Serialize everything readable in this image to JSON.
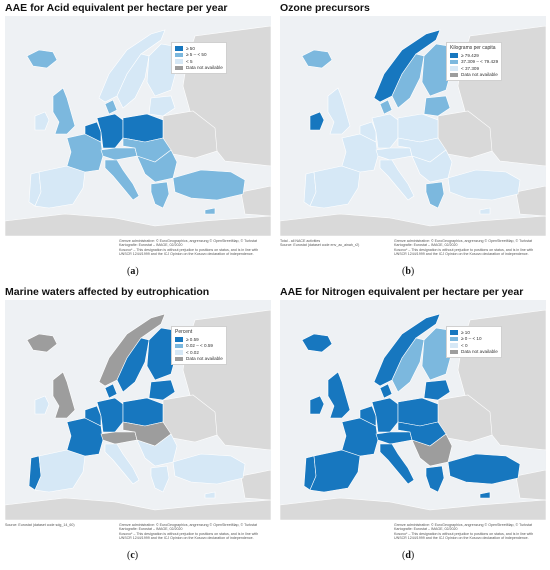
{
  "panels": [
    {
      "id": "a",
      "title": "AAE for Acid equivalent per hectare per year",
      "label": "a",
      "legend": {
        "title": "",
        "items": [
          {
            "label": "≥ 50",
            "color": "#1777bf"
          },
          {
            "label": "≥ 5 – < 50",
            "color": "#7cb8de"
          },
          {
            "label": "< 5",
            "color": "#d6e8f6"
          },
          {
            "label": "Data not available",
            "color": "#9d9d9d"
          }
        ]
      },
      "source": "",
      "credits": [
        "Grenze administrative: © EuroGeographics, angrenzung © OpenStreetMap, © Turkstat",
        "Kartografie: Eurostat – IMAGE, 02/2020",
        "Kosovo* – This designation is without prejudice to positions on status, and is in line with",
        "UNSCR 1244/1999 and the ICJ Opinion on the Kosovo declaration of independence."
      ],
      "fills": {
        "iceland": "#7cb8de",
        "ireland": "#d6e8f6",
        "uk": "#7cb8de",
        "portugal": "#d6e8f6",
        "spain": "#d6e8f6",
        "france": "#7cb8de",
        "benelux": "#1777bf",
        "germany": "#1777bf",
        "poland": "#1777bf",
        "italy": "#7cb8de",
        "alps": "#7cb8de",
        "central": "#7cb8de",
        "balkans": "#7cb8de",
        "greece": "#7cb8de",
        "turkey": "#7cb8de",
        "norway": "#d6e8f6",
        "sweden": "#d6e8f6",
        "finland": "#d6e8f6",
        "baltics": "#d6e8f6",
        "denmark": "#7cb8de",
        "cyprus": "#7cb8de"
      }
    },
    {
      "id": "b",
      "title": "Ozone precursors",
      "label": "b",
      "legend": {
        "title": "Kilograms per capita",
        "items": [
          {
            "label": "≥ 79.429",
            "color": "#1777bf"
          },
          {
            "label": "37.309 – < 79.429",
            "color": "#7cb8de"
          },
          {
            "label": "< 37.309",
            "color": "#d6e8f6"
          },
          {
            "label": "Data not available",
            "color": "#9d9d9d"
          }
        ]
      },
      "source": "Total - all NACE activities\nSource: Eurostat (dataset code env_ac_ainah_r2)",
      "credits": [
        "Grenze administrative: © EuroGeographics, angrenzung © OpenStreetMap, © Turkstat",
        "Kartografie: Eurostat – IMAGE, 02/2020",
        "Kosovo* – This designation is without prejudice to positions on status, and is in line with",
        "UNSCR 1244/1999 and the ICJ Opinion on the Kosovo declaration of independence."
      ],
      "fills": {
        "iceland": "#7cb8de",
        "ireland": "#1777bf",
        "uk": "#d6e8f6",
        "portugal": "#d6e8f6",
        "spain": "#d6e8f6",
        "france": "#d6e8f6",
        "benelux": "#d6e8f6",
        "germany": "#d6e8f6",
        "poland": "#d6e8f6",
        "italy": "#d6e8f6",
        "alps": "#d6e8f6",
        "central": "#d6e8f6",
        "balkans": "#d6e8f6",
        "greece": "#7cb8de",
        "turkey": "#d6e8f6",
        "norway": "#1777bf",
        "sweden": "#7cb8de",
        "finland": "#7cb8de",
        "baltics": "#7cb8de",
        "denmark": "#7cb8de",
        "cyprus": "#d6e8f6"
      }
    },
    {
      "id": "c",
      "title": "Marine waters affected by eutrophication",
      "label": "c",
      "legend": {
        "title": "Percent",
        "items": [
          {
            "label": "≥ 0.59",
            "color": "#1777bf"
          },
          {
            "label": "0.02 – < 0.59",
            "color": "#7cb8de"
          },
          {
            "label": "< 0.02",
            "color": "#d6e8f6"
          },
          {
            "label": "Data not available",
            "color": "#9d9d9d"
          }
        ]
      },
      "source": "Source: Eurostat (dataset code sdg_14_60)",
      "credits": [
        "Grenze administrative: © EuroGeographics, angrenzung © OpenStreetMap, © Turkstat",
        "Kartografie: Eurostat – IMAGE, 02/2020",
        "Kosovo* – This designation is without prejudice to positions on status, and is in line with",
        "UNSCR 1244/1999 and the ICJ Opinion on the Kosovo declaration of independence."
      ],
      "fills": {
        "iceland": "#9d9d9d",
        "ireland": "#d6e8f6",
        "uk": "#9d9d9d",
        "portugal": "#1777bf",
        "spain": "#d6e8f6",
        "france": "#1777bf",
        "benelux": "#1777bf",
        "germany": "#1777bf",
        "poland": "#1777bf",
        "italy": "#d6e8f6",
        "alps": "#9d9d9d",
        "central": "#9d9d9d",
        "balkans": "#d6e8f6",
        "greece": "#d6e8f6",
        "turkey": "#d6e8f6",
        "norway": "#9d9d9d",
        "sweden": "#1777bf",
        "finland": "#1777bf",
        "baltics": "#1777bf",
        "denmark": "#1777bf",
        "cyprus": "#d6e8f6"
      }
    },
    {
      "id": "d",
      "title": "AAE for Nitrogen equivalent per hectare per year",
      "label": "d",
      "legend": {
        "title": "",
        "items": [
          {
            "label": "≥ 10",
            "color": "#1777bf"
          },
          {
            "label": "≥ 0 – < 10",
            "color": "#7cb8de"
          },
          {
            "label": "< 0",
            "color": "#d6e8f6"
          },
          {
            "label": "Data not available",
            "color": "#9d9d9d"
          }
        ]
      },
      "source": "",
      "credits": [
        "Grenze administrative: © EuroGeographics, angrenzung © OpenStreetMap, © Turkstat",
        "Kartografie: Eurostat – IMAGE, 02/2020",
        "Kosovo* – This designation is without prejudice to positions on status, and is in line with",
        "UNSCR 1244/1999 and the ICJ Opinion on the Kosovo declaration of independence."
      ],
      "fills": {
        "iceland": "#1777bf",
        "ireland": "#1777bf",
        "uk": "#1777bf",
        "portugal": "#1777bf",
        "spain": "#1777bf",
        "france": "#1777bf",
        "benelux": "#1777bf",
        "germany": "#1777bf",
        "poland": "#1777bf",
        "italy": "#1777bf",
        "alps": "#1777bf",
        "central": "#1777bf",
        "balkans": "#9d9d9d",
        "greece": "#1777bf",
        "turkey": "#1777bf",
        "norway": "#1777bf",
        "sweden": "#7cb8de",
        "finland": "#7cb8de",
        "baltics": "#1777bf",
        "denmark": "#1777bf",
        "cyprus": "#1777bf"
      }
    }
  ]
}
